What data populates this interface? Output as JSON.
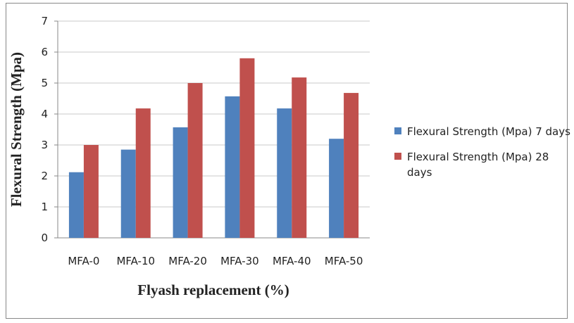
{
  "chart_data": {
    "type": "bar",
    "x_label": "Flyash replacement (%)",
    "y_label": "Flexural Strength (Mpa)",
    "categories": [
      "MFA-0",
      "MFA-10",
      "MFA-20",
      "MFA-30",
      "MFA-40",
      "MFA-50"
    ],
    "series": [
      {
        "name": "Flexural Strength (Mpa) 7 days",
        "color": "#4f81bd",
        "values": [
          2.12,
          2.85,
          3.57,
          4.57,
          4.18,
          3.2
        ]
      },
      {
        "name": "Flexural Strength (Mpa) 28 days",
        "color": "#c0504d",
        "values": [
          3.0,
          4.18,
          5.0,
          5.8,
          5.18,
          4.68
        ]
      }
    ],
    "ylim": [
      0,
      7
    ],
    "yticks": [
      0,
      1,
      2,
      3,
      4,
      5,
      6,
      7
    ],
    "grid": true,
    "legend": "right"
  }
}
